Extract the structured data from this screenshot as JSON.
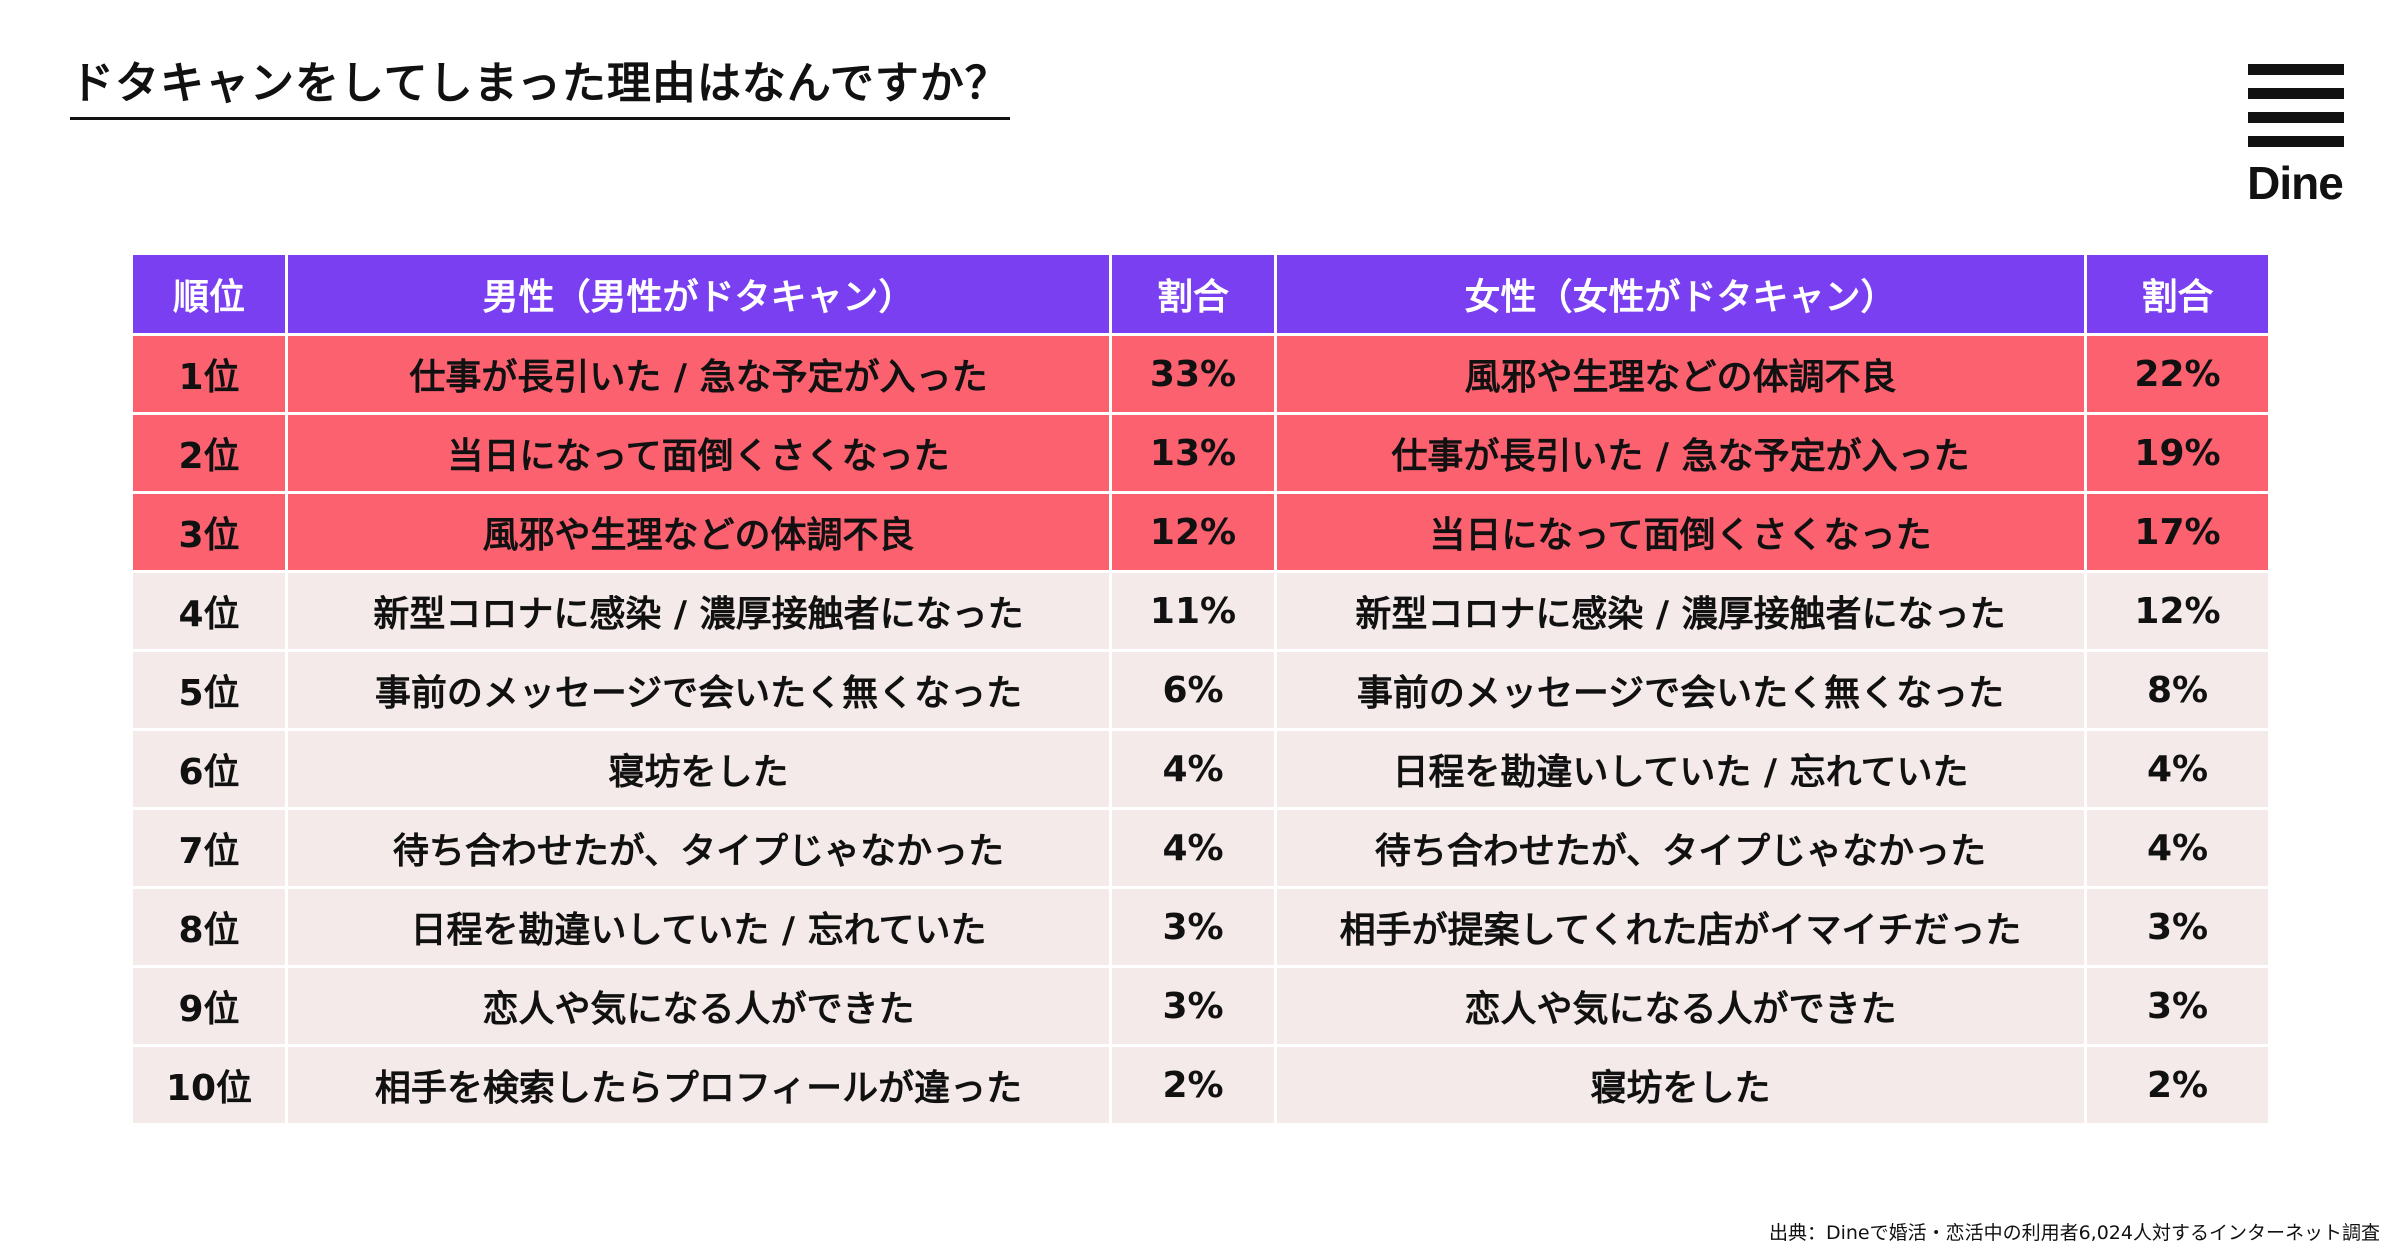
{
  "title": "ドタキャンをしてしまった理由はなんですか？",
  "logo": {
    "text": "Dine",
    "icon": "menu-bars-icon"
  },
  "table": {
    "headers": {
      "rank": "順位",
      "male": "男性（男性がドタキャン）",
      "male_pct": "割合",
      "female": "女性（女性がドタキャン）",
      "female_pct": "割合"
    },
    "rows": [
      {
        "rank": "1位",
        "male": "仕事が長引いた / 急な予定が入った",
        "male_pct": "33%",
        "female": "風邪や生理などの体調不良",
        "female_pct": "22%"
      },
      {
        "rank": "2位",
        "male": "当日になって面倒くさくなった",
        "male_pct": "13%",
        "female": "仕事が長引いた / 急な予定が入った",
        "female_pct": "19%"
      },
      {
        "rank": "3位",
        "male": "風邪や生理などの体調不良",
        "male_pct": "12%",
        "female": "当日になって面倒くさくなった",
        "female_pct": "17%"
      },
      {
        "rank": "4位",
        "male": "新型コロナに感染 / 濃厚接触者になった",
        "male_pct": "11%",
        "female": "新型コロナに感染 / 濃厚接触者になった",
        "female_pct": "12%"
      },
      {
        "rank": "5位",
        "male": "事前のメッセージで会いたく無くなった",
        "male_pct": "6%",
        "female": "事前のメッセージで会いたく無くなった",
        "female_pct": "8%"
      },
      {
        "rank": "6位",
        "male": "寝坊をした",
        "male_pct": "4%",
        "female": "日程を勘違いしていた / 忘れていた",
        "female_pct": "4%"
      },
      {
        "rank": "7位",
        "male": "待ち合わせたが、タイプじゃなかった",
        "male_pct": "4%",
        "female": "待ち合わせたが、タイプじゃなかった",
        "female_pct": "4%"
      },
      {
        "rank": "8位",
        "male": "日程を勘違いしていた / 忘れていた",
        "male_pct": "3%",
        "female": "相手が提案してくれた店がイマイチだった",
        "female_pct": "3%"
      },
      {
        "rank": "9位",
        "male": "恋人や気になる人ができた",
        "male_pct": "3%",
        "female": "恋人や気になる人ができた",
        "female_pct": "3%"
      },
      {
        "rank": "10位",
        "male": "相手を検索したらプロフィールが違った",
        "male_pct": "2%",
        "female": "寝坊をした",
        "female_pct": "2%"
      }
    ]
  },
  "colors": {
    "header_bg": "#7b3ff2",
    "top3_bg": "#fc6170",
    "row_bg": "#f5eaea"
  },
  "source": "出典：Dineで婚活・恋活中の利用者6,024人対するインターネット調査"
}
